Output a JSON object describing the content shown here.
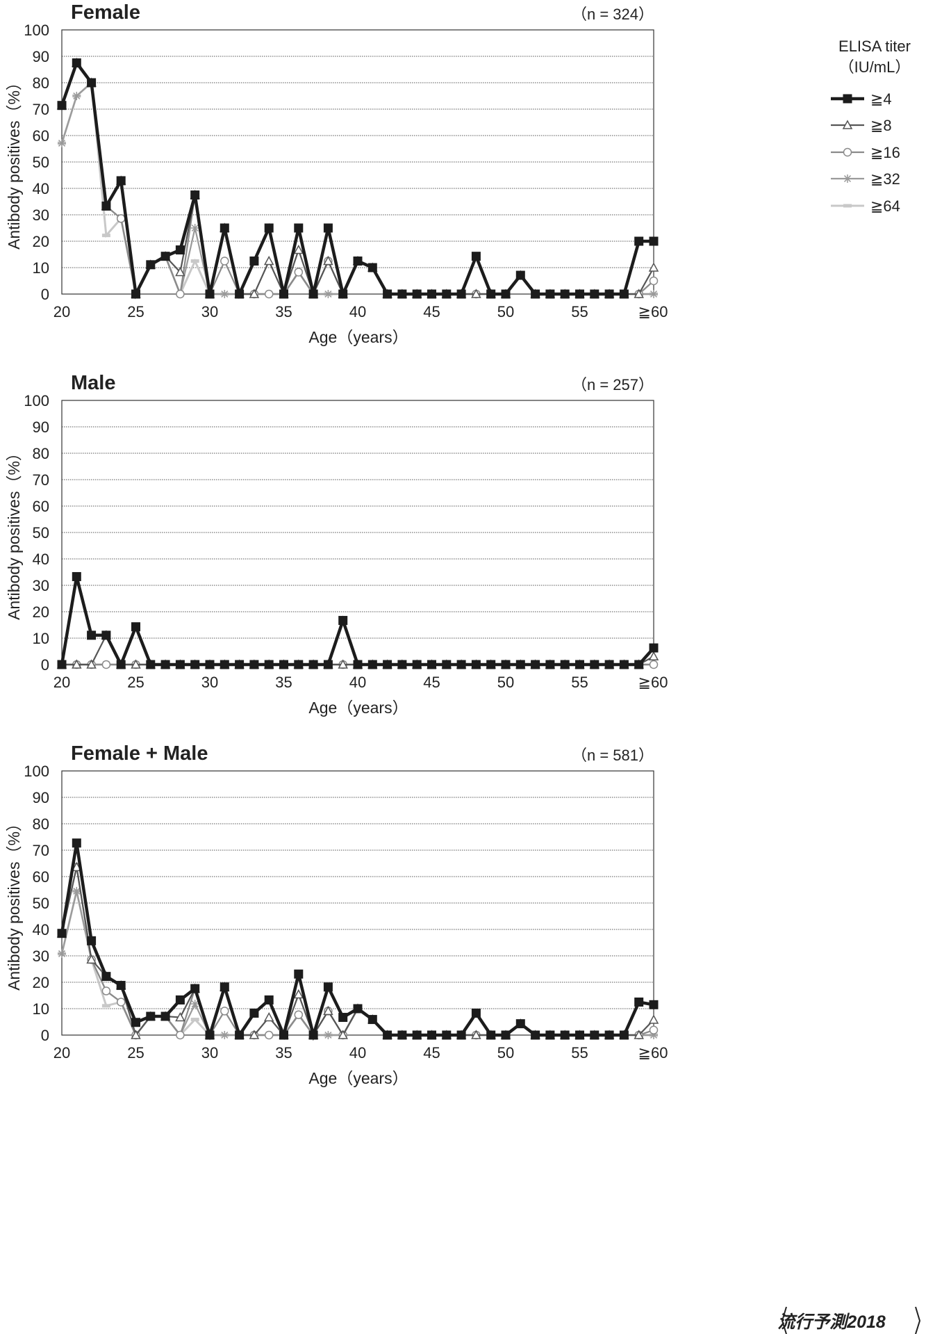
{
  "legend": {
    "title_line1": "ELISA titer",
    "title_line2": "（IU/mL）",
    "items": [
      "≧4",
      "≧8",
      "≧16",
      "≧32",
      "≧64"
    ]
  },
  "footer_mark": "流行予測2018",
  "chart_data": [
    {
      "type": "line",
      "title": "Female",
      "n_label": "（n = 324）",
      "xlabel": "Age（years）",
      "ylabel": "Antibody positives（%）",
      "ylim": [
        0,
        100
      ],
      "yticks": [
        0,
        10,
        20,
        30,
        40,
        50,
        60,
        70,
        80,
        90,
        100
      ],
      "x": [
        20,
        21,
        22,
        23,
        24,
        25,
        26,
        27,
        28,
        29,
        30,
        31,
        32,
        33,
        34,
        35,
        36,
        37,
        38,
        39,
        40,
        41,
        42,
        43,
        44,
        45,
        46,
        47,
        48,
        49,
        50,
        51,
        52,
        53,
        54,
        55,
        56,
        57,
        58,
        59,
        60
      ],
      "xtick_labels": [
        "20",
        "25",
        "30",
        "35",
        "40",
        "45",
        "50",
        "55",
        "≧60"
      ],
      "grid": true,
      "legend_placement": "right",
      "series": [
        {
          "name": "≧4",
          "values": [
            71.4,
            87.5,
            80,
            33.3,
            42.9,
            0,
            11.1,
            14.3,
            16.7,
            37.5,
            0,
            25,
            0,
            12.5,
            25,
            0,
            25,
            0,
            25,
            0,
            12.5,
            10,
            0,
            0,
            0,
            0,
            0,
            0,
            14.3,
            0,
            0,
            7.1,
            0,
            0,
            0,
            0,
            0,
            0,
            0,
            20,
            20
          ]
        },
        {
          "name": "≧8",
          "values": [
            71.4,
            87.5,
            80,
            33.3,
            42.9,
            0,
            11.1,
            14.3,
            8.3,
            37.5,
            0,
            25,
            0,
            0,
            12.5,
            0,
            16.7,
            0,
            12.5,
            0,
            12.5,
            10,
            0,
            0,
            0,
            0,
            0,
            0,
            0,
            0,
            0,
            7.1,
            0,
            0,
            0,
            0,
            0,
            0,
            0,
            0,
            10
          ]
        },
        {
          "name": "≧16",
          "values": [
            71.4,
            87.5,
            80,
            33.3,
            28.6,
            0,
            11.1,
            14.3,
            0,
            37.5,
            0,
            12.5,
            0,
            0,
            0,
            0,
            8.3,
            0,
            12.5,
            0,
            12.5,
            10,
            0,
            0,
            0,
            0,
            0,
            0,
            0,
            0,
            0,
            7.1,
            0,
            0,
            0,
            0,
            0,
            0,
            0,
            0,
            5
          ]
        },
        {
          "name": "≧32",
          "values": [
            57.1,
            75,
            80,
            33.3,
            28.6,
            0,
            11.1,
            14.3,
            0,
            25,
            0,
            0,
            0,
            0,
            0,
            0,
            8.3,
            0,
            0,
            0,
            12.5,
            10,
            0,
            0,
            0,
            0,
            0,
            0,
            0,
            0,
            0,
            7.1,
            0,
            0,
            0,
            0,
            0,
            0,
            0,
            0,
            0
          ]
        },
        {
          "name": "≧64",
          "values": [
            57.1,
            75,
            80,
            22.2,
            28.6,
            0,
            11.1,
            14.3,
            0,
            12.5,
            0,
            0,
            0,
            0,
            0,
            0,
            8.3,
            0,
            0,
            0,
            12.5,
            10,
            0,
            0,
            0,
            0,
            0,
            0,
            0,
            0,
            0,
            7.1,
            0,
            0,
            0,
            0,
            0,
            0,
            0,
            0,
            0
          ]
        }
      ]
    },
    {
      "type": "line",
      "title": "Male",
      "n_label": "（n = 257）",
      "xlabel": "Age（years）",
      "ylabel": "Antibody positives（%）",
      "ylim": [
        0,
        100
      ],
      "yticks": [
        0,
        10,
        20,
        30,
        40,
        50,
        60,
        70,
        80,
        90,
        100
      ],
      "x": [
        20,
        21,
        22,
        23,
        24,
        25,
        26,
        27,
        28,
        29,
        30,
        31,
        32,
        33,
        34,
        35,
        36,
        37,
        38,
        39,
        40,
        41,
        42,
        43,
        44,
        45,
        46,
        47,
        48,
        49,
        50,
        51,
        52,
        53,
        54,
        55,
        56,
        57,
        58,
        59,
        60
      ],
      "xtick_labels": [
        "20",
        "25",
        "30",
        "35",
        "40",
        "45",
        "50",
        "55",
        "≧60"
      ],
      "grid": true,
      "series": [
        {
          "name": "≧4",
          "values": [
            0,
            33.3,
            11.1,
            11.1,
            0,
            14.3,
            0,
            0,
            0,
            0,
            0,
            0,
            0,
            0,
            0,
            0,
            0,
            0,
            0,
            16.7,
            0,
            0,
            0,
            0,
            0,
            0,
            0,
            0,
            0,
            0,
            0,
            0,
            0,
            0,
            0,
            0,
            0,
            0,
            0,
            0,
            6.3
          ]
        },
        {
          "name": "≧8",
          "values": [
            0,
            0,
            0,
            11.1,
            0,
            0,
            0,
            0,
            0,
            0,
            0,
            0,
            0,
            0,
            0,
            0,
            0,
            0,
            0,
            0,
            0,
            0,
            0,
            0,
            0,
            0,
            0,
            0,
            0,
            0,
            0,
            0,
            0,
            0,
            0,
            0,
            0,
            0,
            0,
            0,
            3.1
          ]
        },
        {
          "name": "≧16",
          "values": [
            0,
            0,
            0,
            0,
            0,
            0,
            0,
            0,
            0,
            0,
            0,
            0,
            0,
            0,
            0,
            0,
            0,
            0,
            0,
            0,
            0,
            0,
            0,
            0,
            0,
            0,
            0,
            0,
            0,
            0,
            0,
            0,
            0,
            0,
            0,
            0,
            0,
            0,
            0,
            0,
            0
          ]
        },
        {
          "name": "≧32",
          "values": [
            0,
            0,
            0,
            0,
            0,
            0,
            0,
            0,
            0,
            0,
            0,
            0,
            0,
            0,
            0,
            0,
            0,
            0,
            0,
            0,
            0,
            0,
            0,
            0,
            0,
            0,
            0,
            0,
            0,
            0,
            0,
            0,
            0,
            0,
            0,
            0,
            0,
            0,
            0,
            0,
            0
          ]
        },
        {
          "name": "≧64",
          "values": [
            0,
            0,
            0,
            0,
            0,
            0,
            0,
            0,
            0,
            0,
            0,
            0,
            0,
            0,
            0,
            0,
            0,
            0,
            0,
            0,
            0,
            0,
            0,
            0,
            0,
            0,
            0,
            0,
            0,
            0,
            0,
            0,
            0,
            0,
            0,
            0,
            0,
            0,
            0,
            0,
            0
          ]
        }
      ]
    },
    {
      "type": "line",
      "title": "Female + Male",
      "n_label": "（n = 581）",
      "xlabel": "Age（years）",
      "ylabel": "Antibody positives（%）",
      "ylim": [
        0,
        100
      ],
      "yticks": [
        0,
        10,
        20,
        30,
        40,
        50,
        60,
        70,
        80,
        90,
        100
      ],
      "x": [
        20,
        21,
        22,
        23,
        24,
        25,
        26,
        27,
        28,
        29,
        30,
        31,
        32,
        33,
        34,
        35,
        36,
        37,
        38,
        39,
        40,
        41,
        42,
        43,
        44,
        45,
        46,
        47,
        48,
        49,
        50,
        51,
        52,
        53,
        54,
        55,
        56,
        57,
        58,
        59,
        60
      ],
      "xtick_labels": [
        "20",
        "25",
        "30",
        "35",
        "40",
        "45",
        "50",
        "55",
        "≧60"
      ],
      "grid": true,
      "series": [
        {
          "name": "≧4",
          "values": [
            38.5,
            72.7,
            35.7,
            22.2,
            18.8,
            4.8,
            7.1,
            7.1,
            13.3,
            17.6,
            0,
            18.2,
            0,
            8.3,
            13.3,
            0,
            23.1,
            0,
            18.2,
            6.7,
            10,
            5.9,
            0,
            0,
            0,
            0,
            0,
            0,
            8.3,
            0,
            0,
            4.3,
            0,
            0,
            0,
            0,
            0,
            0,
            0,
            12.5,
            11.5
          ]
        },
        {
          "name": "≧8",
          "values": [
            38.5,
            63.6,
            28.6,
            22.2,
            18.8,
            0,
            7.1,
            7.1,
            6.7,
            17.6,
            0,
            18.2,
            0,
            0,
            6.7,
            0,
            15.4,
            0,
            9.1,
            0,
            10,
            5.9,
            0,
            0,
            0,
            0,
            0,
            0,
            0,
            0,
            0,
            4.3,
            0,
            0,
            0,
            0,
            0,
            0,
            0,
            0,
            5.8
          ]
        },
        {
          "name": "≧16",
          "values": [
            38.5,
            63.6,
            28.6,
            16.7,
            12.5,
            0,
            7.1,
            7.1,
            0,
            17.6,
            0,
            9.1,
            0,
            0,
            0,
            0,
            7.7,
            0,
            9.1,
            0,
            10,
            5.9,
            0,
            0,
            0,
            0,
            0,
            0,
            0,
            0,
            0,
            4.3,
            0,
            0,
            0,
            0,
            0,
            0,
            0,
            0,
            1.9
          ]
        },
        {
          "name": "≧32",
          "values": [
            30.8,
            54.5,
            28.6,
            16.7,
            12.5,
            0,
            7.1,
            7.1,
            0,
            11.8,
            0,
            0,
            0,
            0,
            0,
            0,
            7.7,
            0,
            0,
            0,
            10,
            5.9,
            0,
            0,
            0,
            0,
            0,
            0,
            0,
            0,
            0,
            4.3,
            0,
            0,
            0,
            0,
            0,
            0,
            0,
            0,
            0
          ]
        },
        {
          "name": "≧64",
          "values": [
            30.8,
            54.5,
            28.6,
            11.1,
            12.5,
            0,
            7.1,
            7.1,
            0,
            5.9,
            0,
            0,
            0,
            0,
            0,
            0,
            7.7,
            0,
            0,
            0,
            10,
            5.9,
            0,
            0,
            0,
            0,
            0,
            0,
            0,
            0,
            0,
            4.3,
            0,
            0,
            0,
            0,
            0,
            0,
            0,
            0,
            0
          ]
        }
      ]
    }
  ]
}
